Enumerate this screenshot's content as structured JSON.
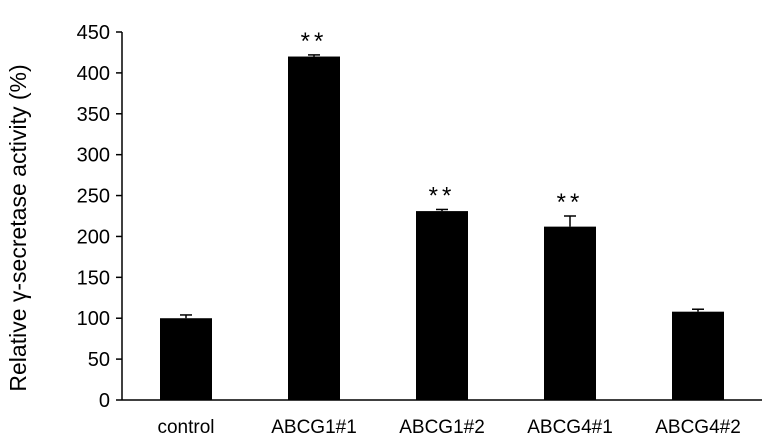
{
  "chart_data": {
    "type": "bar",
    "ylabel": "Relative γ-secretase activity (%)",
    "categories": [
      "control",
      "ABCG1#1",
      "ABCG1#2",
      "ABCG4#1",
      "ABCG4#2"
    ],
    "values": [
      100,
      420,
      231,
      212,
      108
    ],
    "errors": [
      4,
      2,
      2,
      13,
      3
    ],
    "annotations": [
      "",
      "**",
      "**",
      "**",
      ""
    ],
    "yticks": [
      0,
      50,
      100,
      150,
      200,
      250,
      300,
      350,
      400,
      450
    ],
    "ylim": [
      0,
      450
    ],
    "grid": false,
    "legend": "none",
    "bar_color": "#000000"
  }
}
